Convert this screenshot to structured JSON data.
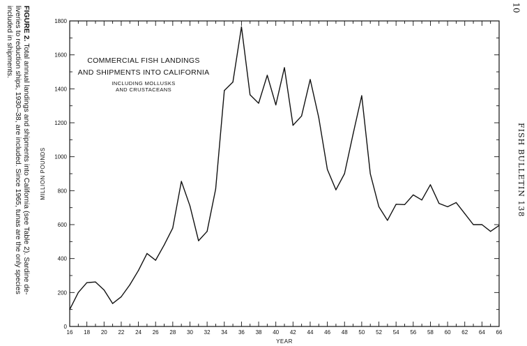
{
  "page_number": "10",
  "running_head": "FISH BULLETIN 138",
  "caption": {
    "label": "FIGURE 2.",
    "text": "Total annual landings and shipments into California (see Table 2). Sardine de-liveries to reduction ships, 1930–38, are included. Since 1965, tunas are the only species included in shipments."
  },
  "chart_data": {
    "type": "line",
    "title_lines": [
      "COMMERCIAL FISH LANDINGS",
      "AND SHIPMENTS INTO CALIFORNIA"
    ],
    "subtitle_lines": [
      "INCLUDING MOLLUSKS",
      "AND CRUSTACEANS"
    ],
    "xlabel": "YEAR",
    "ylabel": "MILLION POUNDS",
    "xlim": [
      16,
      66
    ],
    "ylim": [
      0,
      1800
    ],
    "x_ticks": [
      16,
      18,
      20,
      22,
      24,
      26,
      28,
      30,
      32,
      34,
      36,
      38,
      40,
      42,
      44,
      46,
      48,
      50,
      52,
      54,
      56,
      58,
      60,
      62,
      64,
      66
    ],
    "y_ticks": [
      0,
      200,
      400,
      600,
      800,
      1000,
      1200,
      1400,
      1600,
      1800
    ],
    "grid": false,
    "series": [
      {
        "x": [
          16,
          17,
          18,
          19,
          20,
          21,
          22,
          23,
          24,
          25,
          26,
          27,
          28,
          29,
          30,
          31,
          32,
          33,
          34,
          35,
          36,
          37,
          38,
          39,
          40,
          41,
          42,
          43,
          44,
          45,
          46,
          47,
          48,
          49,
          50,
          51,
          52,
          53,
          54,
          55,
          56,
          57,
          58,
          59,
          60,
          61,
          62,
          63,
          64,
          65,
          66
        ],
        "y": [
          100,
          200,
          258,
          262,
          215,
          135,
          175,
          245,
          330,
          430,
          390,
          480,
          580,
          855,
          710,
          505,
          560,
          810,
          1390,
          1440,
          1765,
          1365,
          1315,
          1480,
          1305,
          1525,
          1185,
          1240,
          1455,
          1230,
          925,
          805,
          900,
          1135,
          1360,
          900,
          705,
          625,
          720,
          718,
          775,
          745,
          835,
          725,
          705,
          730,
          665,
          600,
          600,
          560,
          595
        ]
      }
    ]
  }
}
